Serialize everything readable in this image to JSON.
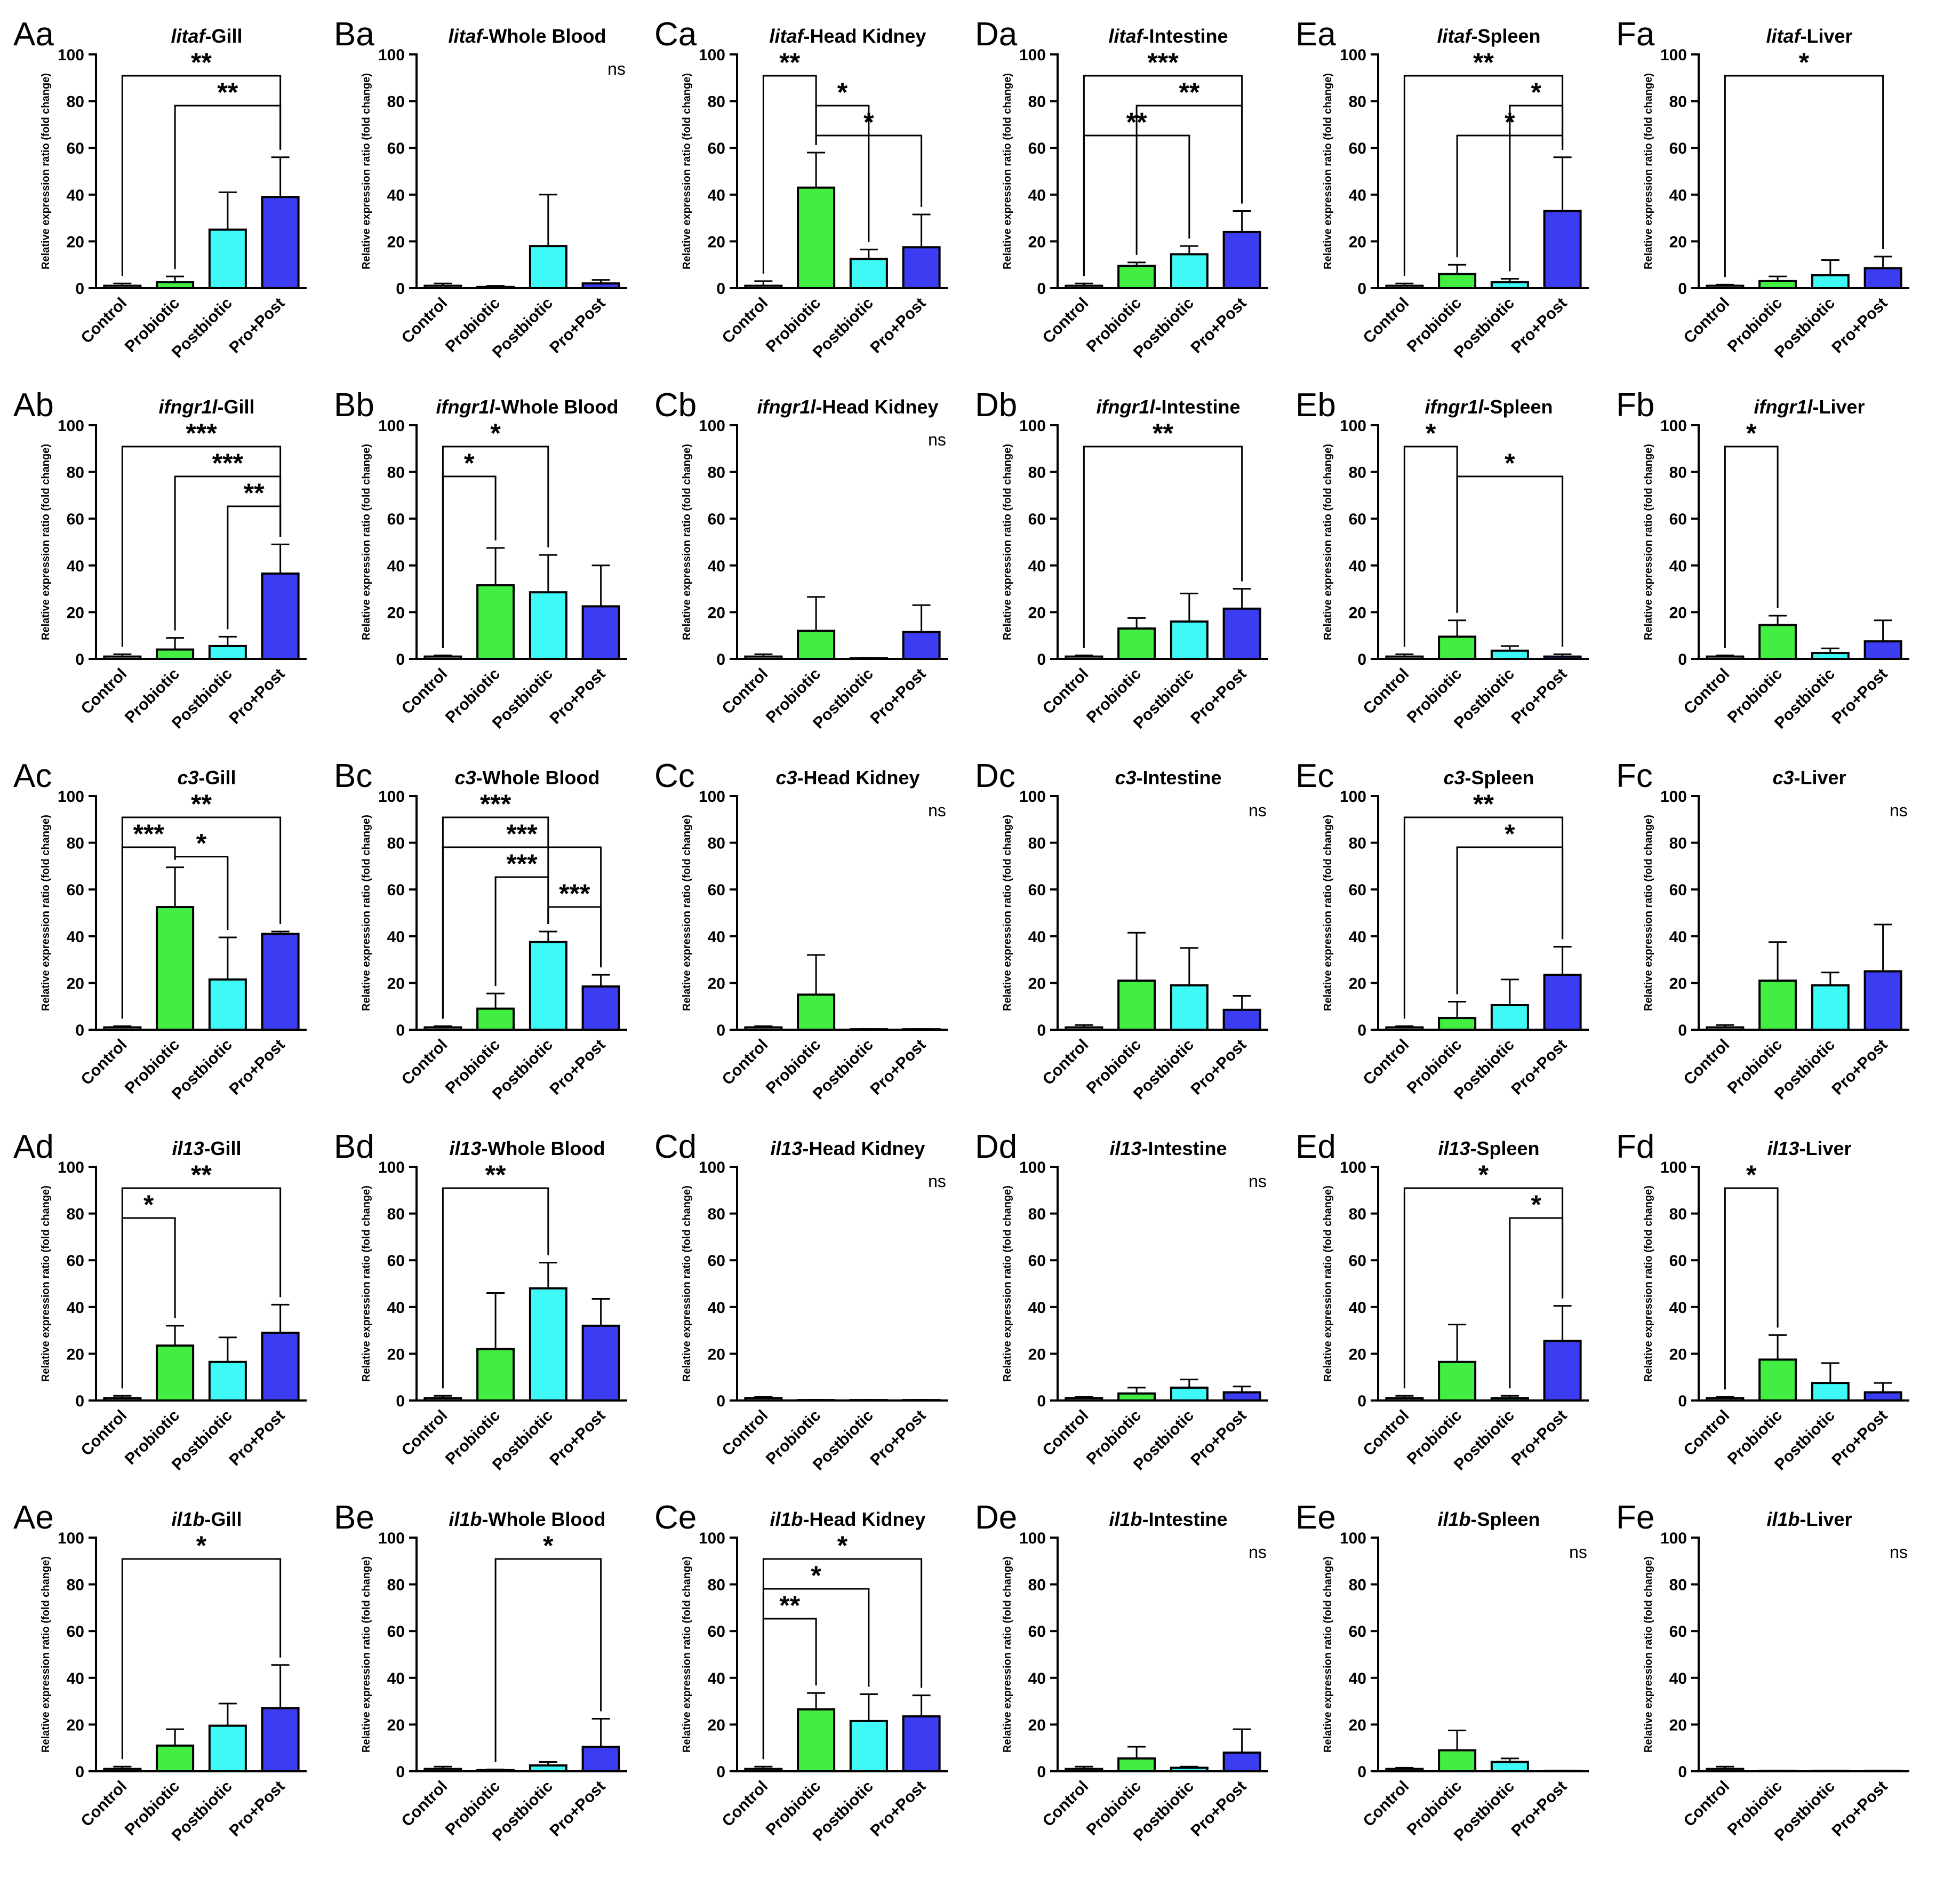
{
  "figure": {
    "y_axis_label": "Relative expression ratio (fold change)",
    "y_ticks": [
      0,
      20,
      40,
      60,
      80,
      100
    ],
    "categories": [
      "Control",
      "Probiotic",
      "Postbiotic",
      "Pro+Post"
    ],
    "colors": {
      "Control": "#ffffff",
      "Probiotic": "#43ee43",
      "Postbiotic": "#3ff9f7",
      "Pro+Post": "#3c3cf2"
    },
    "rows": [
      "a",
      "b",
      "c",
      "d",
      "e"
    ],
    "cols": [
      "A",
      "B",
      "C",
      "D",
      "E",
      "F"
    ]
  },
  "chart_data": [
    {
      "id": "Aa",
      "label": "Aa",
      "gene": "litaf",
      "tissue": "-Gill",
      "type": "bar",
      "ylim": [
        0,
        100
      ],
      "values": [
        1,
        2.5,
        25,
        39
      ],
      "errors": [
        1,
        2.5,
        16,
        17
      ],
      "brackets": [
        {
          "from": 0,
          "to": 3,
          "stars": "**"
        },
        {
          "from": 1,
          "to": 3,
          "stars": "**"
        }
      ],
      "ns": false
    },
    {
      "id": "Ba",
      "label": "Ba",
      "gene": "litaf",
      "tissue": "-Whole Blood",
      "type": "bar",
      "ylim": [
        0,
        100
      ],
      "values": [
        1,
        0.5,
        18,
        2
      ],
      "errors": [
        1,
        0.5,
        22,
        1.5
      ],
      "brackets": [],
      "ns": true
    },
    {
      "id": "Ca",
      "label": "Ca",
      "gene": "litaf",
      "tissue": "-Head Kidney",
      "type": "bar",
      "ylim": [
        0,
        100
      ],
      "values": [
        1,
        43,
        12.5,
        17.5
      ],
      "errors": [
        2,
        15,
        4,
        14
      ],
      "brackets": [
        {
          "from": 0,
          "to": 1,
          "stars": "**"
        },
        {
          "from": 1,
          "to": 2,
          "stars": "*"
        },
        {
          "from": 1,
          "to": 3,
          "stars": "*"
        }
      ],
      "ns": false
    },
    {
      "id": "Da",
      "label": "Da",
      "gene": "litaf",
      "tissue": "-Intestine",
      "type": "bar",
      "ylim": [
        0,
        100
      ],
      "values": [
        1,
        9.5,
        14.5,
        24
      ],
      "errors": [
        1,
        1.5,
        3.5,
        9
      ],
      "brackets": [
        {
          "from": 0,
          "to": 3,
          "stars": "***"
        },
        {
          "from": 1,
          "to": 3,
          "stars": "**"
        },
        {
          "from": 0,
          "to": 2,
          "stars": "**"
        }
      ],
      "ns": false
    },
    {
      "id": "Ea",
      "label": "Ea",
      "gene": "litaf",
      "tissue": "-Spleen",
      "type": "bar",
      "ylim": [
        0,
        100
      ],
      "values": [
        1,
        6,
        2.5,
        33
      ],
      "errors": [
        1,
        4,
        1.5,
        23
      ],
      "brackets": [
        {
          "from": 0,
          "to": 3,
          "stars": "**"
        },
        {
          "from": 2,
          "to": 3,
          "stars": "*"
        },
        {
          "from": 1,
          "to": 3,
          "stars": "*"
        }
      ],
      "ns": false
    },
    {
      "id": "Fa",
      "label": "Fa",
      "gene": "litaf",
      "tissue": "-Liver",
      "type": "bar",
      "ylim": [
        0,
        100
      ],
      "values": [
        1,
        3,
        5.5,
        8.5
      ],
      "errors": [
        0.5,
        2,
        6.5,
        5
      ],
      "brackets": [
        {
          "from": 0,
          "to": 3,
          "stars": "*"
        }
      ],
      "ns": false
    },
    {
      "id": "Ab",
      "label": "Ab",
      "gene": "ifngr1l",
      "tissue": "-Gill",
      "type": "bar",
      "ylim": [
        0,
        100
      ],
      "values": [
        1,
        4,
        5.5,
        36.5
      ],
      "errors": [
        1,
        5,
        4,
        12.5
      ],
      "brackets": [
        {
          "from": 0,
          "to": 3,
          "stars": "***"
        },
        {
          "from": 1,
          "to": 3,
          "stars": "***"
        },
        {
          "from": 2,
          "to": 3,
          "stars": "**"
        }
      ],
      "ns": false
    },
    {
      "id": "Bb",
      "label": "Bb",
      "gene": "ifngr1l",
      "tissue": "-Whole Blood",
      "type": "bar",
      "ylim": [
        0,
        100
      ],
      "values": [
        1,
        31.5,
        28.5,
        22.5
      ],
      "errors": [
        0.5,
        16,
        16,
        17.5
      ],
      "brackets": [
        {
          "from": 0,
          "to": 2,
          "stars": "*"
        },
        {
          "from": 0,
          "to": 1,
          "stars": "*"
        }
      ],
      "ns": false
    },
    {
      "id": "Cb",
      "label": "Cb",
      "gene": "ifngr1l",
      "tissue": "-Head Kidney",
      "type": "bar",
      "ylim": [
        0,
        100
      ],
      "values": [
        1,
        12,
        0.3,
        11.5
      ],
      "errors": [
        1,
        14.5,
        0.2,
        11.5
      ],
      "brackets": [],
      "ns": true
    },
    {
      "id": "Db",
      "label": "Db",
      "gene": "ifngr1l",
      "tissue": "-Intestine",
      "type": "bar",
      "ylim": [
        0,
        100
      ],
      "values": [
        1,
        13,
        16,
        21.5
      ],
      "errors": [
        0.5,
        4.5,
        12,
        8.5
      ],
      "brackets": [
        {
          "from": 0,
          "to": 3,
          "stars": "**"
        }
      ],
      "ns": false
    },
    {
      "id": "Eb",
      "label": "Eb",
      "gene": "ifngr1l",
      "tissue": "-Spleen",
      "type": "bar",
      "ylim": [
        0,
        100
      ],
      "values": [
        1,
        9.5,
        3.5,
        1
      ],
      "errors": [
        1,
        7,
        2,
        1
      ],
      "brackets": [
        {
          "from": 0,
          "to": 1,
          "stars": "*"
        },
        {
          "from": 1,
          "to": 3,
          "stars": "*"
        }
      ],
      "ns": false
    },
    {
      "id": "Fb",
      "label": "Fb",
      "gene": "ifngr1l",
      "tissue": "-Liver",
      "type": "bar",
      "ylim": [
        0,
        100
      ],
      "values": [
        1,
        14.5,
        2.5,
        7.5
      ],
      "errors": [
        0.5,
        4,
        2,
        9
      ],
      "brackets": [
        {
          "from": 0,
          "to": 1,
          "stars": "*"
        }
      ],
      "ns": false
    },
    {
      "id": "Ac",
      "label": "Ac",
      "gene": "c3",
      "tissue": "-Gill",
      "type": "bar",
      "ylim": [
        0,
        100
      ],
      "values": [
        1,
        52.5,
        21.5,
        41
      ],
      "errors": [
        0.5,
        17,
        18,
        1
      ],
      "brackets": [
        {
          "from": 0,
          "to": 3,
          "stars": "**"
        },
        {
          "from": 0,
          "to": 1,
          "stars": "***"
        },
        {
          "from": 1,
          "to": 2,
          "stars": "*"
        }
      ],
      "ns": false
    },
    {
      "id": "Bc",
      "label": "Bc",
      "gene": "c3",
      "tissue": "-Whole Blood",
      "type": "bar",
      "ylim": [
        0,
        100
      ],
      "values": [
        1,
        9,
        37.5,
        18.5
      ],
      "errors": [
        0.5,
        6.5,
        4.5,
        5
      ],
      "brackets": [
        {
          "from": 0,
          "to": 2,
          "stars": "***"
        },
        {
          "from": 0,
          "to": 3,
          "stars": "***"
        },
        {
          "from": 1,
          "to": 2,
          "stars": "***"
        },
        {
          "from": 2,
          "to": 3,
          "stars": "***"
        }
      ],
      "ns": false
    },
    {
      "id": "Cc",
      "label": "Cc",
      "gene": "c3",
      "tissue": "-Head Kidney",
      "type": "bar",
      "ylim": [
        0,
        100
      ],
      "values": [
        1,
        15,
        0.2,
        0.2
      ],
      "errors": [
        0.5,
        17,
        0.1,
        0.1
      ],
      "brackets": [],
      "ns": true
    },
    {
      "id": "Dc",
      "label": "Dc",
      "gene": "c3",
      "tissue": "-Intestine",
      "type": "bar",
      "ylim": [
        0,
        100
      ],
      "values": [
        1,
        21,
        19,
        8.5
      ],
      "errors": [
        1,
        20.5,
        16,
        6
      ],
      "brackets": [],
      "ns": true
    },
    {
      "id": "Ec",
      "label": "Ec",
      "gene": "c3",
      "tissue": "-Spleen",
      "type": "bar",
      "ylim": [
        0,
        100
      ],
      "values": [
        1,
        5,
        10.5,
        23.5
      ],
      "errors": [
        0.5,
        7,
        11,
        12
      ],
      "brackets": [
        {
          "from": 0,
          "to": 3,
          "stars": "**"
        },
        {
          "from": 1,
          "to": 3,
          "stars": "*"
        }
      ],
      "ns": false
    },
    {
      "id": "Fc",
      "label": "Fc",
      "gene": "c3",
      "tissue": "-Liver",
      "type": "bar",
      "ylim": [
        0,
        100
      ],
      "values": [
        1,
        21,
        19,
        25
      ],
      "errors": [
        1,
        16.5,
        5.5,
        20
      ],
      "brackets": [],
      "ns": true
    },
    {
      "id": "Ad",
      "label": "Ad",
      "gene": "il13",
      "tissue": "-Gill",
      "type": "bar",
      "ylim": [
        0,
        100
      ],
      "values": [
        1,
        23.5,
        16.5,
        29
      ],
      "errors": [
        1,
        8.5,
        10.5,
        12
      ],
      "brackets": [
        {
          "from": 0,
          "to": 3,
          "stars": "**"
        },
        {
          "from": 0,
          "to": 1,
          "stars": "*"
        }
      ],
      "ns": false
    },
    {
      "id": "Bd",
      "label": "Bd",
      "gene": "il13",
      "tissue": "-Whole Blood",
      "type": "bar",
      "ylim": [
        0,
        100
      ],
      "values": [
        1,
        22,
        48,
        32
      ],
      "errors": [
        1,
        24,
        11,
        11.5
      ],
      "brackets": [
        {
          "from": 0,
          "to": 2,
          "stars": "**"
        }
      ],
      "ns": false
    },
    {
      "id": "Cd",
      "label": "Cd",
      "gene": "il13",
      "tissue": "-Head Kidney",
      "type": "bar",
      "ylim": [
        0,
        100
      ],
      "values": [
        1,
        0.2,
        0.2,
        0.2
      ],
      "errors": [
        0.5,
        0.1,
        0.1,
        0.1
      ],
      "brackets": [],
      "ns": true
    },
    {
      "id": "Dd",
      "label": "Dd",
      "gene": "il13",
      "tissue": "-Intestine",
      "type": "bar",
      "ylim": [
        0,
        100
      ],
      "values": [
        1,
        3,
        5.5,
        3.5
      ],
      "errors": [
        0.5,
        2.5,
        3.5,
        2.5
      ],
      "brackets": [],
      "ns": true
    },
    {
      "id": "Ed",
      "label": "Ed",
      "gene": "il13",
      "tissue": "-Spleen",
      "type": "bar",
      "ylim": [
        0,
        100
      ],
      "values": [
        1,
        16.5,
        1,
        25.5
      ],
      "errors": [
        1,
        16,
        1,
        15
      ],
      "brackets": [
        {
          "from": 0,
          "to": 3,
          "stars": "*"
        },
        {
          "from": 2,
          "to": 3,
          "stars": "*"
        }
      ],
      "ns": false
    },
    {
      "id": "Fd",
      "label": "Fd",
      "gene": "il13",
      "tissue": "-Liver",
      "type": "bar",
      "ylim": [
        0,
        100
      ],
      "values": [
        1,
        17.5,
        7.5,
        3.5
      ],
      "errors": [
        0.5,
        10.5,
        8.5,
        4
      ],
      "brackets": [
        {
          "from": 0,
          "to": 1,
          "stars": "*"
        }
      ],
      "ns": false
    },
    {
      "id": "Ae",
      "label": "Ae",
      "gene": "il1b",
      "tissue": "-Gill",
      "type": "bar",
      "ylim": [
        0,
        100
      ],
      "values": [
        1,
        11,
        19.5,
        27
      ],
      "errors": [
        1,
        7,
        9.5,
        18.5
      ],
      "brackets": [
        {
          "from": 0,
          "to": 3,
          "stars": "*"
        }
      ],
      "ns": false
    },
    {
      "id": "Be",
      "label": "Be",
      "gene": "il1b",
      "tissue": "-Whole Blood",
      "type": "bar",
      "ylim": [
        0,
        100
      ],
      "values": [
        1,
        0.5,
        2.5,
        10.5
      ],
      "errors": [
        1,
        0.3,
        1.5,
        12
      ],
      "brackets": [
        {
          "from": 1,
          "to": 3,
          "stars": "*"
        }
      ],
      "ns": false
    },
    {
      "id": "Ce",
      "label": "Ce",
      "gene": "il1b",
      "tissue": "-Head Kidney",
      "type": "bar",
      "ylim": [
        0,
        100
      ],
      "values": [
        1,
        26.5,
        21.5,
        23.5
      ],
      "errors": [
        1,
        7,
        11.5,
        9
      ],
      "brackets": [
        {
          "from": 0,
          "to": 3,
          "stars": "*"
        },
        {
          "from": 0,
          "to": 2,
          "stars": "*"
        },
        {
          "from": 0,
          "to": 1,
          "stars": "**"
        }
      ],
      "ns": false
    },
    {
      "id": "De",
      "label": "De",
      "gene": "il1b",
      "tissue": "-Intestine",
      "type": "bar",
      "ylim": [
        0,
        100
      ],
      "values": [
        1,
        5.5,
        1.5,
        8
      ],
      "errors": [
        1,
        5,
        0.5,
        10
      ],
      "brackets": [],
      "ns": true
    },
    {
      "id": "Ee",
      "label": "Ee",
      "gene": "il1b",
      "tissue": "-Spleen",
      "type": "bar",
      "ylim": [
        0,
        100
      ],
      "values": [
        1,
        9,
        4,
        0.2
      ],
      "errors": [
        0.5,
        8.5,
        1.5,
        0.1
      ],
      "brackets": [],
      "ns": true
    },
    {
      "id": "Fe",
      "label": "Fe",
      "gene": "il1b",
      "tissue": "-Liver",
      "type": "bar",
      "ylim": [
        0,
        100
      ],
      "values": [
        1,
        0.2,
        0.2,
        0.2
      ],
      "errors": [
        1,
        0.1,
        0.1,
        0.1
      ],
      "brackets": [],
      "ns": true
    }
  ]
}
